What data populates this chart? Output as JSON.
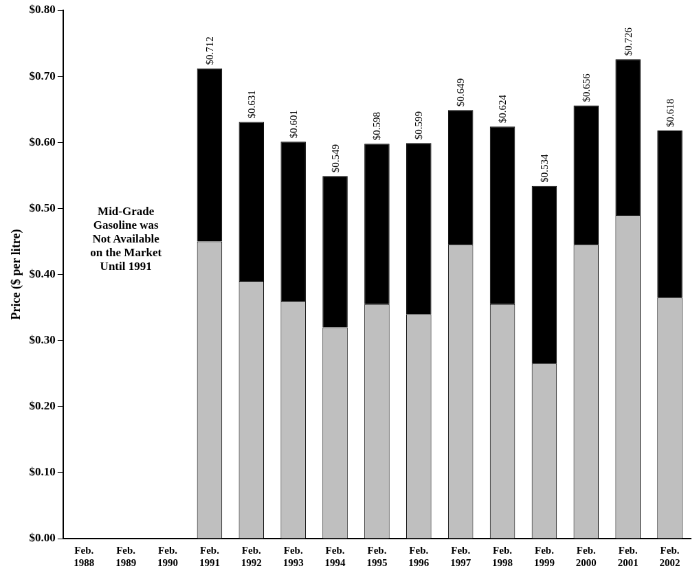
{
  "chart_data": {
    "type": "bar",
    "stacked": true,
    "ylabel": "Price ($ per litre)",
    "categories": [
      "Feb. 1988",
      "Feb. 1989",
      "Feb. 1990",
      "Feb. 1991",
      "Feb. 1992",
      "Feb. 1993",
      "Feb. 1994",
      "Feb. 1995",
      "Feb. 1996",
      "Feb. 1997",
      "Feb. 1998",
      "Feb. 1999",
      "Feb. 2000",
      "Feb. 2001",
      "Feb. 2002"
    ],
    "series": [
      {
        "color": "#bfbfbf",
        "values": [
          null,
          null,
          null,
          0.45,
          0.39,
          0.36,
          0.32,
          0.355,
          0.34,
          0.445,
          0.355,
          0.265,
          0.445,
          0.49,
          0.365
        ]
      },
      {
        "color": "#000000",
        "values": [
          null,
          null,
          null,
          0.262,
          0.241,
          0.241,
          0.229,
          0.243,
          0.259,
          0.204,
          0.269,
          0.269,
          0.211,
          0.236,
          0.253
        ]
      }
    ],
    "totals": [
      null,
      null,
      null,
      "$0.712",
      "$0.631",
      "$0.601",
      "$0.549",
      "$0.598",
      "$0.599",
      "$0.649",
      "$0.624",
      "$0.534",
      "$0.656",
      "$0.726",
      "$0.618"
    ],
    "ylim": [
      0,
      0.8
    ],
    "yticks": [
      {
        "value": 0,
        "label": "$0.00"
      },
      {
        "value": 0.1,
        "label": "$0.10"
      },
      {
        "value": 0.2,
        "label": "$0.20"
      },
      {
        "value": 0.3,
        "label": "$0.30"
      },
      {
        "value": 0.4,
        "label": "$0.40"
      },
      {
        "value": 0.5,
        "label": "$0.50"
      },
      {
        "value": 0.6,
        "label": "$0.60"
      },
      {
        "value": 0.7,
        "label": "$0.70"
      },
      {
        "value": 0.8,
        "label": "$0.80"
      }
    ],
    "grid": false,
    "legend": false,
    "annotations": [
      "Mid-Grade Gasoline was Not Available on the Market Until 1991"
    ]
  }
}
